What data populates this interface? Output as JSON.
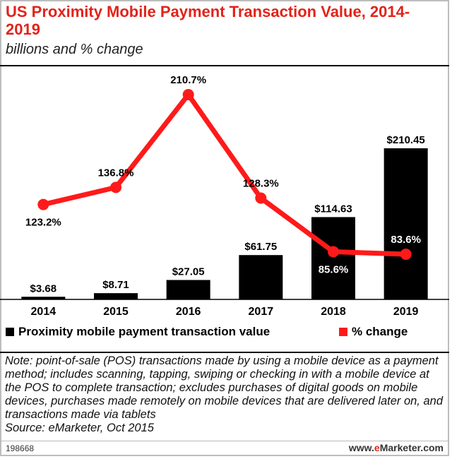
{
  "chart_data": {
    "type": "bar+line",
    "title": "US Proximity Mobile Payment Transaction Value, 2014-2019",
    "subtitle": "billions and % change",
    "categories": [
      "2014",
      "2015",
      "2016",
      "2017",
      "2018",
      "2019"
    ],
    "series": [
      {
        "name": "Proximity mobile payment transaction value",
        "type": "bar",
        "color": "#000000",
        "values": [
          3.68,
          8.71,
          27.05,
          61.75,
          114.63,
          210.45
        ],
        "labels": [
          "$3.68",
          "$8.71",
          "$27.05",
          "$61.75",
          "$114.63",
          "$210.45"
        ]
      },
      {
        "name": "% change",
        "type": "line",
        "color": "#ff1a1a",
        "values": [
          123.2,
          136.8,
          210.7,
          128.3,
          85.6,
          83.6
        ],
        "labels": [
          "123.2%",
          "136.8%",
          "210.7%",
          "128.3%",
          "85.6%",
          "83.6%"
        ]
      }
    ],
    "bar_range": [
      0,
      210.45
    ],
    "line_range": [
      83.6,
      210.7
    ],
    "grid": false,
    "legend_position": "bottom"
  },
  "legend": {
    "bars_label": "Proximity mobile payment transaction value",
    "line_label": "% change"
  },
  "note": {
    "text": "Note: point-of-sale (POS) transactions made by using a mobile device as a payment method; includes scanning, tapping, swiping or checking in with a mobile device at the POS to complete transaction; excludes purchases of digital goods on mobile devices, purchases made remotely on mobile devices that are delivered later on, and transactions made via tablets",
    "source": "Source: eMarketer, Oct 2015"
  },
  "footer": {
    "chart_id": "198668",
    "brand_prefix": "www.",
    "brand_highlight": "e",
    "brand_suffix": "Marketer.com"
  }
}
